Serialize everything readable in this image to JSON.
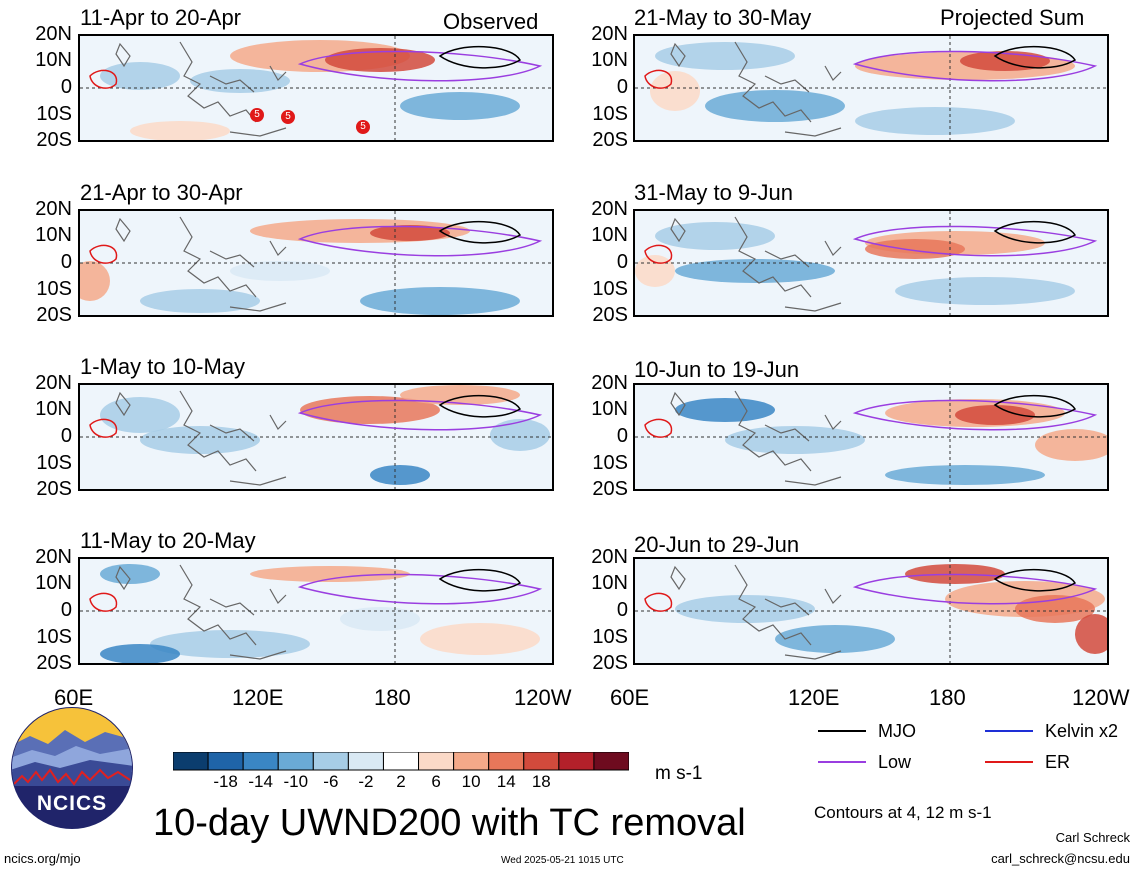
{
  "panels_left": [
    {
      "period": "11-Apr to 20-Apr",
      "tag": "Observed"
    },
    {
      "period": "21-Apr to 30-Apr",
      "tag": ""
    },
    {
      "period": "1-May to 10-May",
      "tag": ""
    },
    {
      "period": "11-May to 20-May",
      "tag": ""
    }
  ],
  "panels_right": [
    {
      "period": "21-May to 30-May",
      "tag": "Projected Sum"
    },
    {
      "period": "31-May to 9-Jun",
      "tag": ""
    },
    {
      "period": "10-Jun to 19-Jun",
      "tag": ""
    },
    {
      "period": "20-Jun to 29-Jun",
      "tag": ""
    }
  ],
  "lat_labels": [
    "20N",
    "10N",
    "0",
    "10S",
    "20S"
  ],
  "lon_labels": [
    "60E",
    "120E",
    "180",
    "120W"
  ],
  "tc_markers": [
    "5",
    "5",
    "5"
  ],
  "colorbar": {
    "labels": [
      "-18",
      "-14",
      "-10",
      "-6",
      "-2",
      "2",
      "6",
      "10",
      "14",
      "18"
    ],
    "colors": [
      "#0b3d6e",
      "#1f64a8",
      "#3a86c4",
      "#6aaad6",
      "#a7cde6",
      "#d9e9f4",
      "#ffffff",
      "#fbd9c7",
      "#f4a989",
      "#e8775a",
      "#d24a3c",
      "#b3202a",
      "#6e0b1f"
    ],
    "unit": "m s-1"
  },
  "legend": {
    "items": [
      {
        "label": "MJO",
        "color": "#000000"
      },
      {
        "label": "Kelvin x2",
        "color": "#1e2fd6"
      },
      {
        "label": "Low",
        "color": "#9a3ee0"
      },
      {
        "label": "ER",
        "color": "#e01919"
      }
    ],
    "note": "Contours at 4, 12 m s-1"
  },
  "title": "10-day UWND200 with TC removal",
  "logo_text": "NCICS",
  "footer": {
    "url": "ncics.org/mjo",
    "timestamp": "Wed 2025-05-21 1015 UTC",
    "author": "Carl Schreck",
    "email": "carl_schreck@ncsu.edu"
  }
}
